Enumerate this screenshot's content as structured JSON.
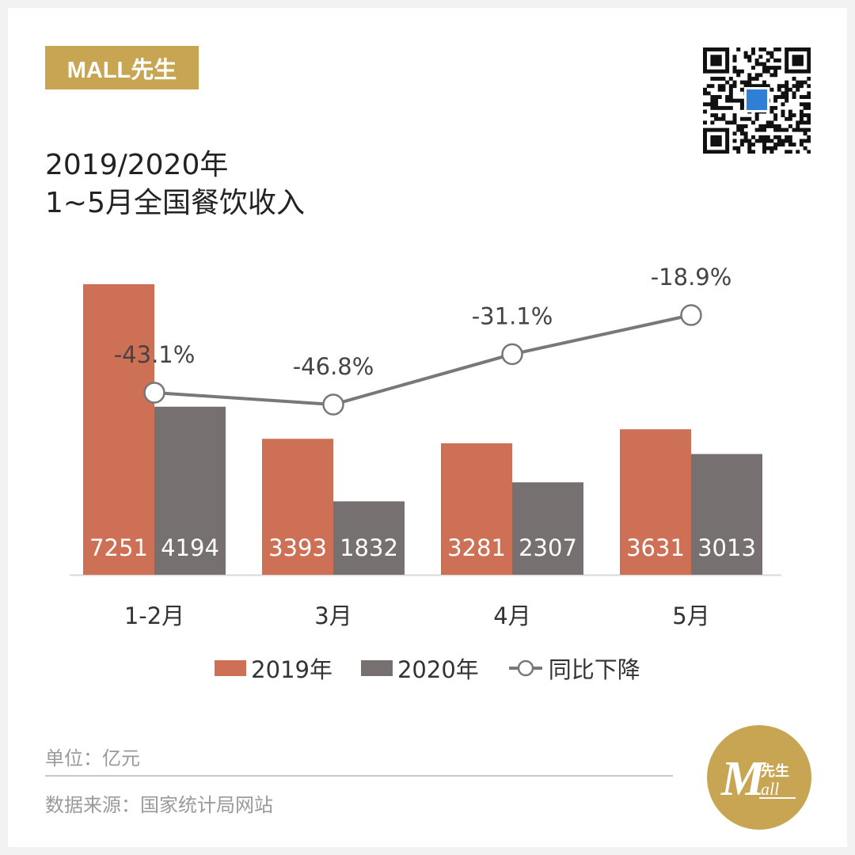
{
  "brand": {
    "name": "MALL先生"
  },
  "title": {
    "line1": "2019/2020年",
    "line2": "1~5月全国餐饮收入"
  },
  "colors": {
    "series2019": "#cd7055",
    "series2020": "#767170",
    "line": "#7b7677",
    "gold": "#c8a552"
  },
  "chart_data": {
    "type": "bar",
    "categories": [
      "1-2月",
      "3月",
      "4月",
      "5月"
    ],
    "series": [
      {
        "name": "2019年",
        "type": "bar",
        "values": [
          7251,
          3393,
          3281,
          3631
        ],
        "labels": [
          "7251",
          "3393",
          "3281",
          "3631"
        ]
      },
      {
        "name": "2020年",
        "type": "bar",
        "values": [
          4194,
          1832,
          2307,
          3013
        ],
        "labels": [
          "4194",
          "1832",
          "2307",
          "3013"
        ]
      },
      {
        "name": "同比下降",
        "type": "line",
        "values": [
          -43.1,
          -46.8,
          -31.1,
          -18.9
        ],
        "labels": [
          "-43.1%",
          "-46.8%",
          "-31.1%",
          "-18.9%"
        ]
      }
    ],
    "legend": {
      "position": "bottom"
    },
    "grid": false
  },
  "footer": {
    "unit": "单位：亿元",
    "source": "数据来源：国家统计局网站"
  },
  "logo": {
    "text_main": "M",
    "text_small": "先生",
    "text_sub": "all"
  }
}
